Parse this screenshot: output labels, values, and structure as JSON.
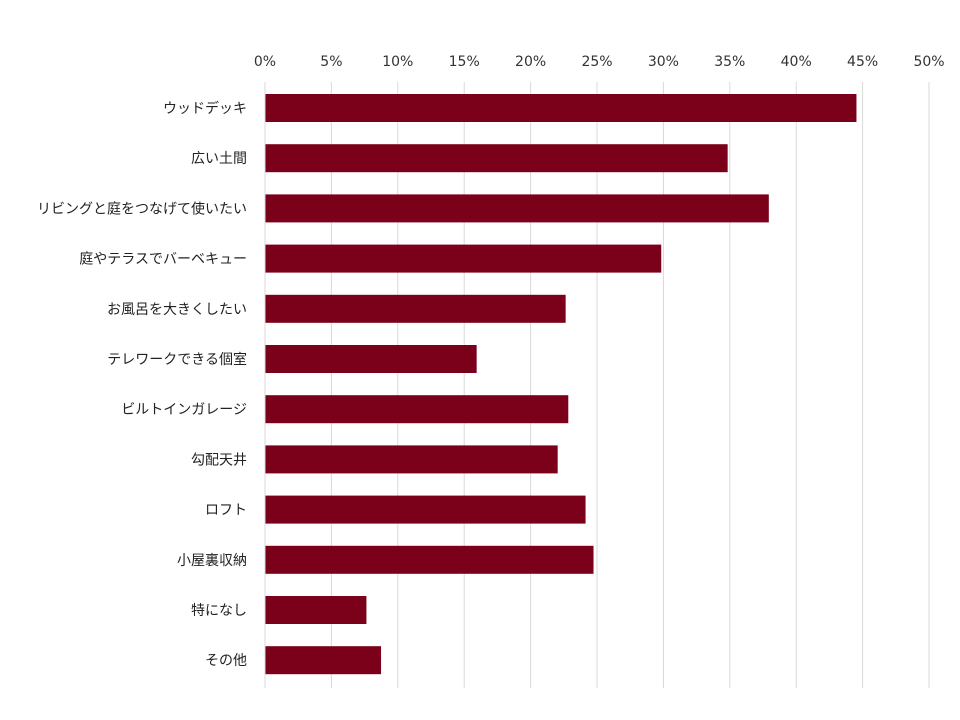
{
  "chart_data": {
    "type": "bar",
    "orientation": "horizontal",
    "categories": [
      "ウッドデッキ",
      "広い土間",
      "リビングと庭をつなげて使いたい",
      "庭やテラスでバーベキュー",
      "お風呂を大きくしたい",
      "テレワークできる個室",
      "ビルトインガレージ",
      "勾配天井",
      "ロフト",
      "小屋裏収納",
      "特になし",
      "その他"
    ],
    "values": [
      44.5,
      34.8,
      37.9,
      29.8,
      22.6,
      15.9,
      22.8,
      22.0,
      24.1,
      24.7,
      7.6,
      8.7
    ],
    "unit": "%",
    "xlim": [
      0,
      50
    ],
    "xticks": [
      "0%",
      "5%",
      "10%",
      "15%",
      "20%",
      "25%",
      "30%",
      "35%",
      "40%",
      "45%",
      "50%"
    ],
    "xtick_values": [
      0,
      5,
      10,
      15,
      20,
      25,
      30,
      35,
      40,
      45,
      50
    ],
    "xaxis_position": "top",
    "grid": true,
    "legend": "none",
    "bar_color": "#7b0019"
  }
}
